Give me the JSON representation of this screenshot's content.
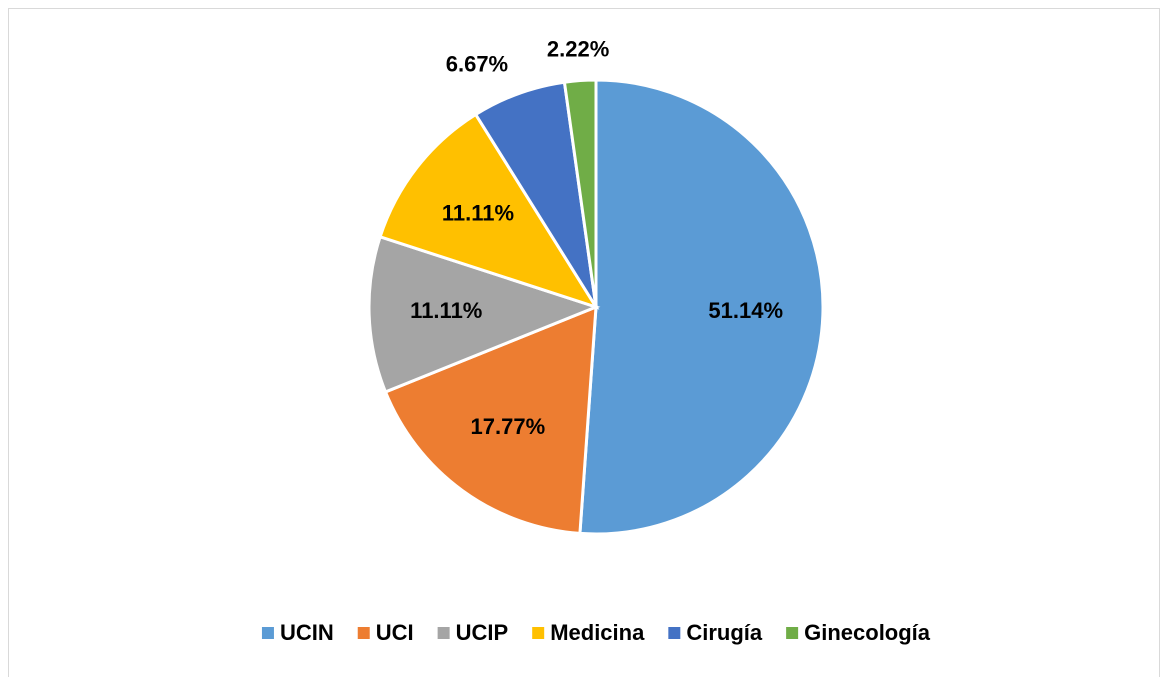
{
  "chart_data": {
    "type": "pie",
    "categories": [
      "UCIN",
      "UCI",
      "UCIP",
      "Medicina",
      "Cirugía",
      "Ginecología"
    ],
    "values": [
      51.14,
      17.77,
      11.11,
      11.11,
      6.67,
      2.22
    ],
    "value_labels": [
      "51.14%",
      "17.77%",
      "11.11%",
      "11.11%",
      "6.67%",
      "2.22%"
    ],
    "colors": [
      "#5b9bd5",
      "#ed7d31",
      "#a5a5a5",
      "#ffc000",
      "#4472c4",
      "#70ad47"
    ],
    "legend": "bottom"
  }
}
